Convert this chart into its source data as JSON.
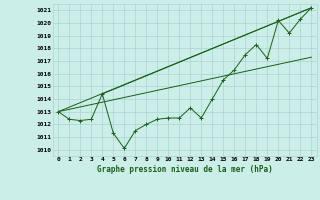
{
  "title": "Graphe pression niveau de la mer (hPa)",
  "bg_color": "#cceee8",
  "grid_color": "#aad4ce",
  "line_color": "#1a5e1a",
  "xlim": [
    -0.5,
    23.5
  ],
  "ylim": [
    1009.5,
    1021.5
  ],
  "yticks": [
    1010,
    1011,
    1012,
    1013,
    1014,
    1015,
    1016,
    1017,
    1018,
    1019,
    1020,
    1021
  ],
  "xticks": [
    0,
    1,
    2,
    3,
    4,
    5,
    6,
    7,
    8,
    9,
    10,
    11,
    12,
    13,
    14,
    15,
    16,
    17,
    18,
    19,
    20,
    21,
    22,
    23
  ],
  "xlabel_labels": [
    "0",
    "1",
    "2",
    "3",
    "4",
    "5",
    "6",
    "7",
    "8",
    "9",
    "10",
    "11",
    "12",
    "13",
    "14",
    "15",
    "16",
    "17",
    "18",
    "19",
    "20",
    "21",
    "22",
    "23"
  ],
  "main_data": [
    1013.0,
    1012.4,
    1012.3,
    1012.4,
    1014.4,
    1011.3,
    1010.1,
    1011.5,
    1012.0,
    1012.4,
    1012.5,
    1012.5,
    1013.3,
    1012.5,
    1014.0,
    1015.5,
    1016.3,
    1017.5,
    1018.3,
    1017.2,
    1020.2,
    1019.2,
    1020.3,
    1021.2
  ],
  "trend1_x": [
    0,
    23
  ],
  "trend1_y": [
    1013.0,
    1021.2
  ],
  "trend2_x": [
    0,
    23
  ],
  "trend2_y": [
    1013.0,
    1017.3
  ],
  "trend3_x": [
    4,
    23
  ],
  "trend3_y": [
    1014.4,
    1021.2
  ]
}
